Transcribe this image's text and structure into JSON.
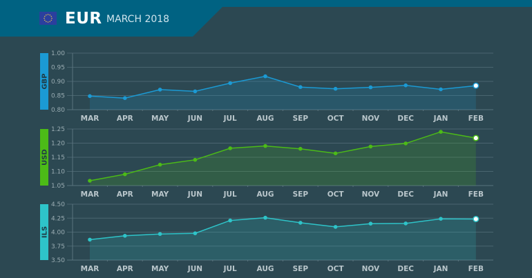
{
  "header": {
    "currency": "EUR",
    "period": "MARCH 2018",
    "flag_icon": "eu-flag-icon",
    "band_color": "#006282",
    "background_color": "#2c4852"
  },
  "chart_data": [
    {
      "type": "area",
      "title": "GBP",
      "ylabel": "GBP",
      "color": "#1b9ad4",
      "ylim": [
        0.8,
        1.0
      ],
      "yticks": [
        "0.80",
        "0.85",
        "0.90",
        "0.95",
        "1.00"
      ],
      "categories": [
        "MAR",
        "APR",
        "MAY",
        "JUN",
        "JUL",
        "AUG",
        "SEP",
        "OCT",
        "NOV",
        "DEC",
        "JAN",
        "FEB"
      ],
      "values": [
        0.848,
        0.841,
        0.871,
        0.865,
        0.894,
        0.918,
        0.88,
        0.874,
        0.879,
        0.886,
        0.872,
        0.885
      ],
      "grid": true,
      "highlight_last": true
    },
    {
      "type": "area",
      "title": "USD",
      "ylabel": "USD",
      "color": "#4cbb17",
      "ylim": [
        1.05,
        1.25
      ],
      "yticks": [
        "1.05",
        "1.10",
        "1.15",
        "1.20",
        "1.25"
      ],
      "categories": [
        "MAR",
        "APR",
        "MAY",
        "JUN",
        "JUL",
        "AUG",
        "SEP",
        "OCT",
        "NOV",
        "DEC",
        "JAN",
        "FEB"
      ],
      "values": [
        1.067,
        1.09,
        1.124,
        1.141,
        1.182,
        1.19,
        1.18,
        1.164,
        1.188,
        1.199,
        1.24,
        1.218
      ],
      "grid": true,
      "highlight_last": true
    },
    {
      "type": "area",
      "title": "ILS",
      "ylabel": "ILS",
      "color": "#2ec4c9",
      "ylim": [
        3.5,
        4.5
      ],
      "yticks": [
        "3.50",
        "3.75",
        "4.00",
        "4.25",
        "4.50"
      ],
      "categories": [
        "MAR",
        "APR",
        "MAY",
        "JUN",
        "JUL",
        "AUG",
        "SEP",
        "OCT",
        "NOV",
        "DEC",
        "JAN",
        "FEB"
      ],
      "values": [
        3.865,
        3.934,
        3.967,
        3.979,
        4.209,
        4.258,
        4.168,
        4.094,
        4.152,
        4.156,
        4.238,
        4.234
      ],
      "grid": true,
      "highlight_last": true
    }
  ]
}
